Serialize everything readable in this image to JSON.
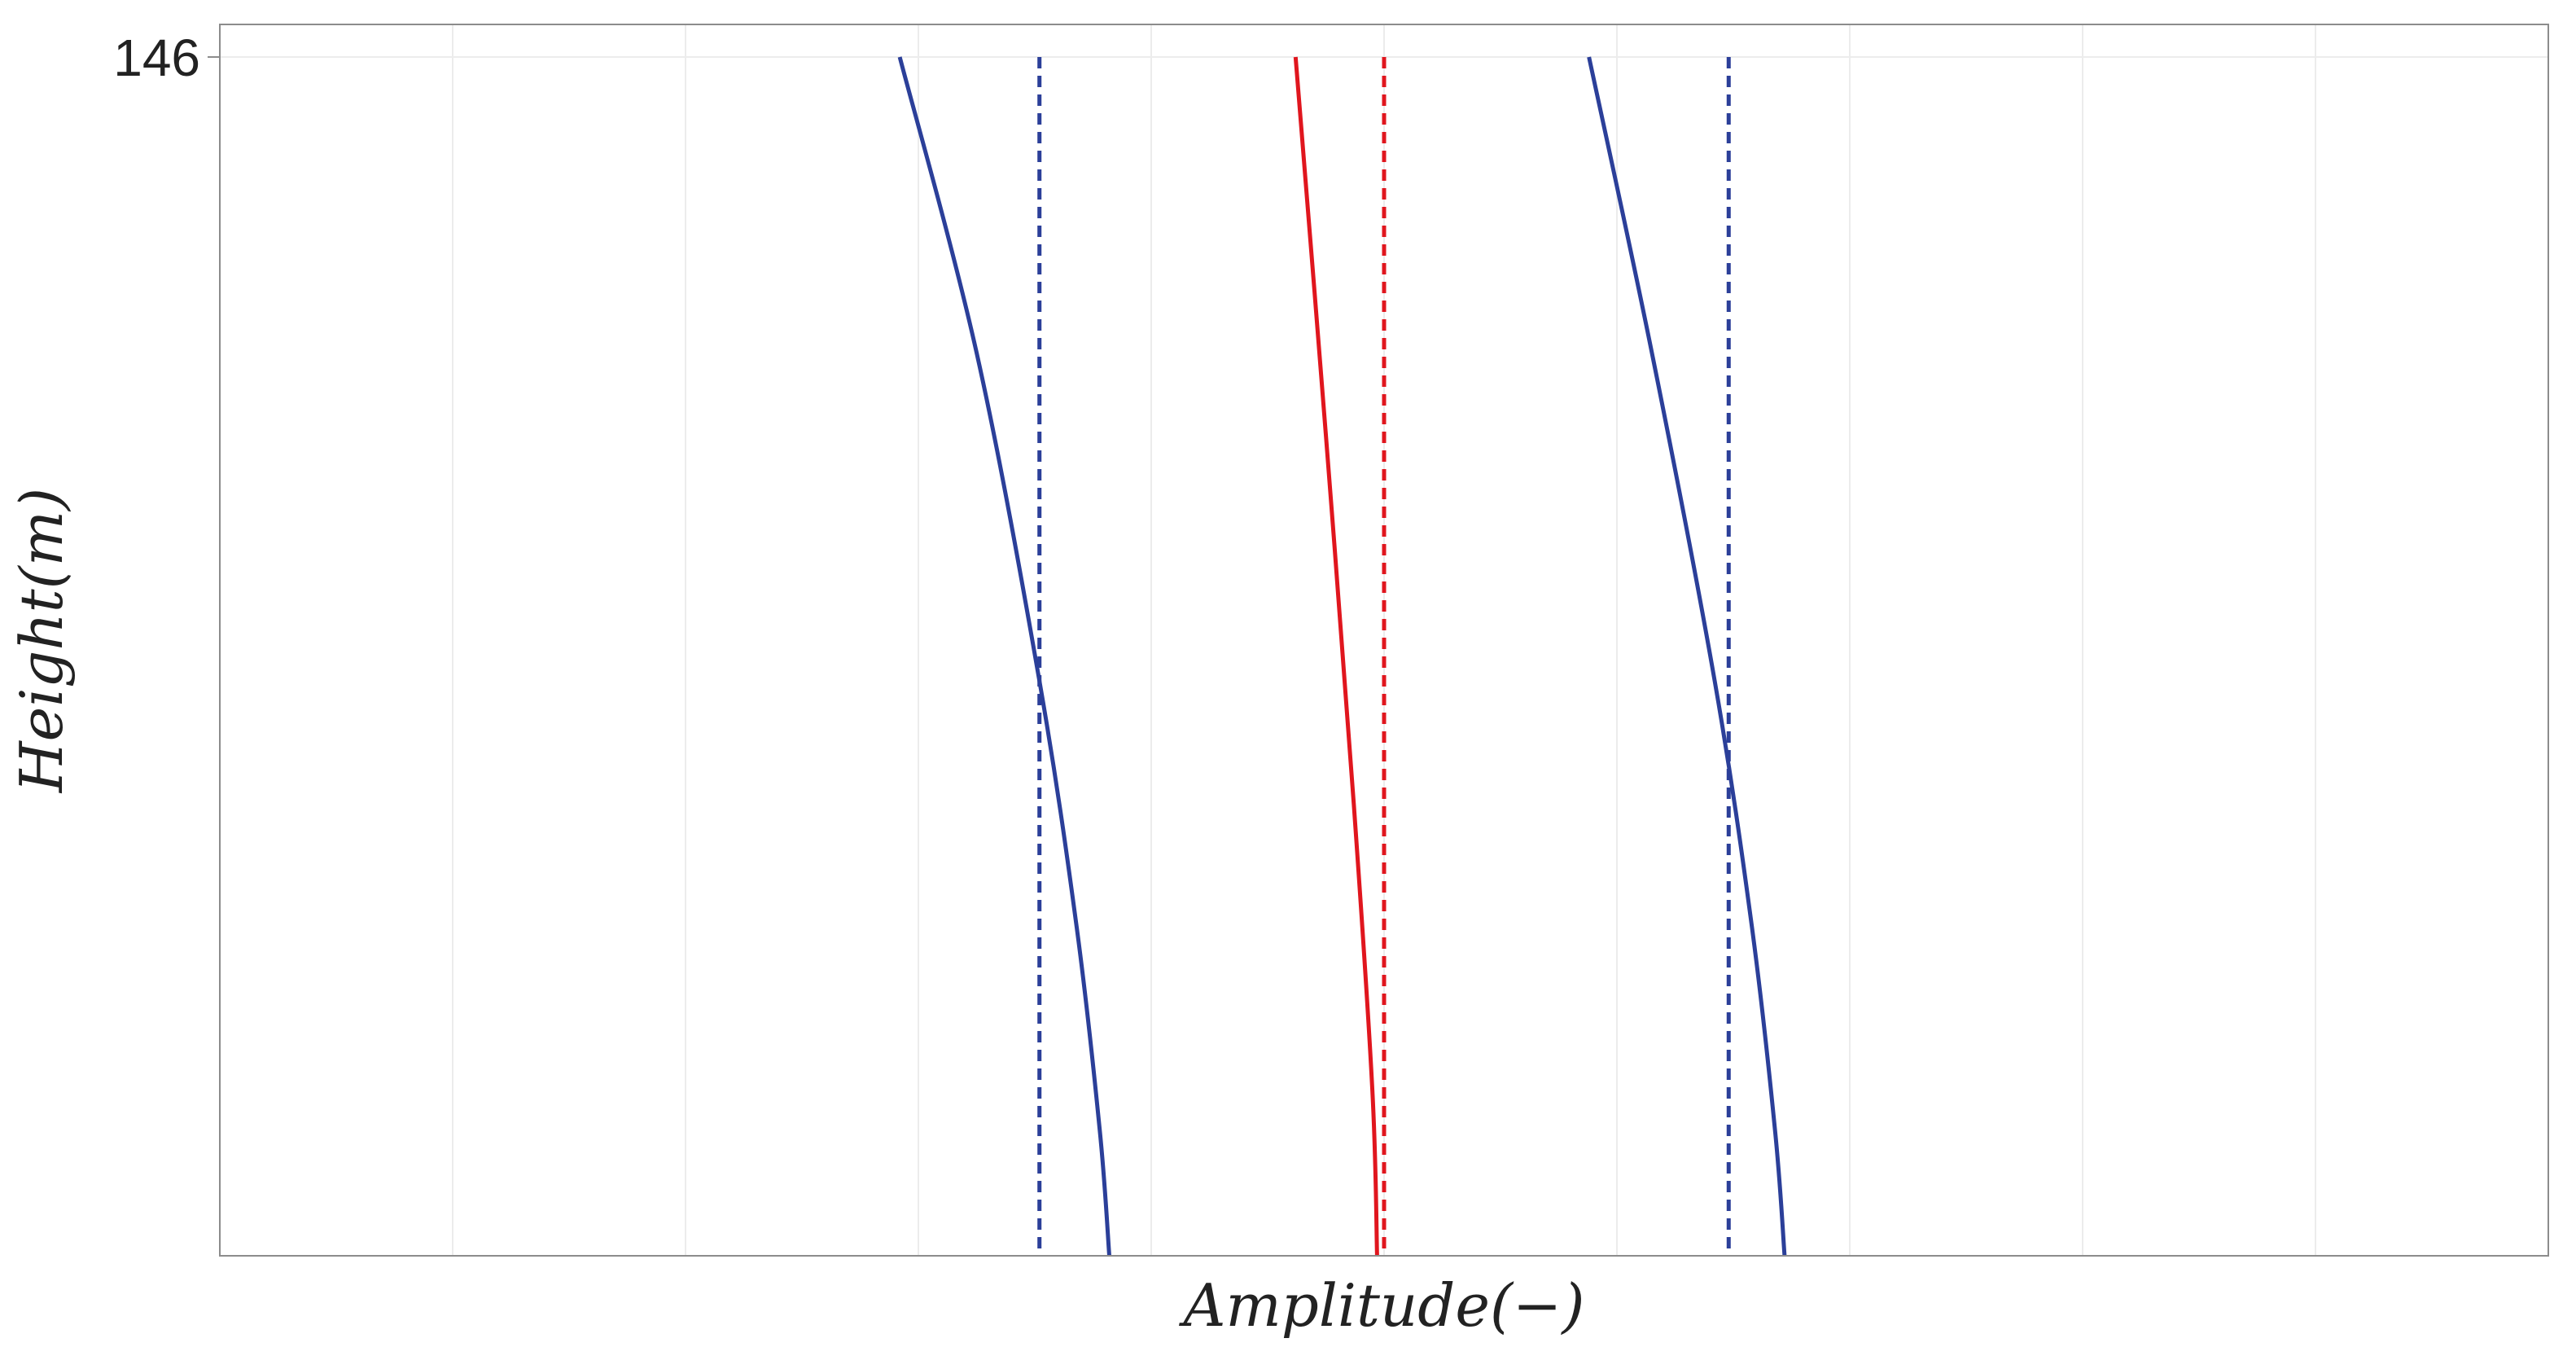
{
  "chart_data": {
    "type": "line",
    "title": "",
    "xlabel": "Amplitude(−)",
    "ylabel": "Height(m)",
    "y_tick_labels": [
      "146"
    ],
    "ylim": [
      0,
      146
    ],
    "xlim": [
      -5,
      5
    ],
    "x_grid_lines": 10,
    "grid": true,
    "colors": {
      "blue": "#2b3f99",
      "red": "#e0161e",
      "grid": "#ececec",
      "frame": "#8c8c8c"
    },
    "series": [
      {
        "style": "solid",
        "color": "blue",
        "points": [
          [
            -2.08,
            146
          ],
          [
            -1.75,
            110
          ],
          [
            -1.48,
            70
          ],
          [
            -1.32,
            40
          ],
          [
            -1.22,
            15
          ],
          [
            -1.18,
            0
          ]
        ]
      },
      {
        "style": "dashed",
        "color": "blue",
        "points": [
          [
            -1.48,
            146
          ],
          [
            -1.48,
            0
          ]
        ]
      },
      {
        "style": "solid",
        "color": "red",
        "points": [
          [
            -0.38,
            146
          ],
          [
            -0.25,
            100
          ],
          [
            -0.13,
            55
          ],
          [
            -0.05,
            20
          ],
          [
            -0.03,
            0
          ]
        ]
      },
      {
        "style": "dashed",
        "color": "red",
        "points": [
          [
            0.0,
            146
          ],
          [
            0.0,
            0
          ]
        ]
      },
      {
        "style": "solid",
        "color": "blue",
        "points": [
          [
            0.88,
            146
          ],
          [
            1.15,
            110
          ],
          [
            1.42,
            70
          ],
          [
            1.58,
            40
          ],
          [
            1.68,
            15
          ],
          [
            1.72,
            0
          ]
        ]
      },
      {
        "style": "dashed",
        "color": "blue",
        "points": [
          [
            1.48,
            146
          ],
          [
            1.48,
            0
          ]
        ]
      }
    ]
  }
}
